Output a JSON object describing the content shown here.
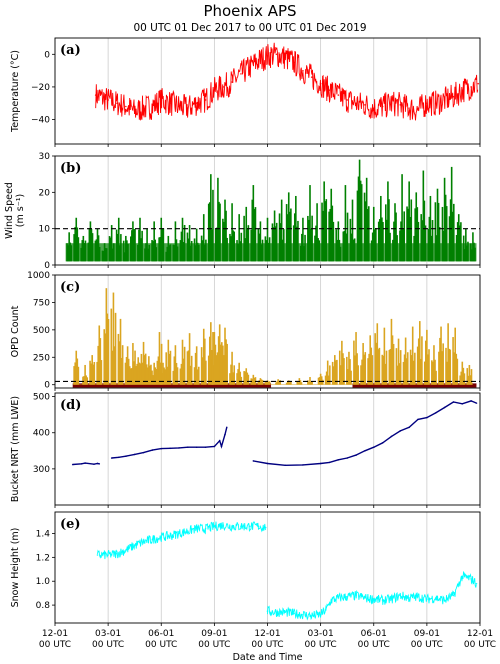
{
  "figure": {
    "title": "Phoenix APS",
    "subtitle": "00 UTC 01 Dec 2017  to  00 UTC 01 Dec 2019"
  },
  "chart_data": [
    {
      "type": "line",
      "panel_label": "(a)",
      "ylabel": "Temperature (°C)",
      "ylim": [
        -55,
        10
      ],
      "yticks": [
        0,
        -20,
        -40
      ],
      "ytick_labels": [
        "0",
        "−20",
        "−40"
      ],
      "color": "#ff0000",
      "grid": "vertical",
      "series": [
        {
          "x_months": [
            2.3,
            3.0,
            3.5,
            4.0,
            4.5,
            5.0,
            5.5,
            6.0,
            6.5,
            7.0,
            7.5,
            8.0,
            8.5,
            9.0,
            9.5,
            10.0,
            10.5,
            11.0,
            11.5,
            12.0,
            12.5,
            13.0,
            13.5,
            14.0,
            14.5,
            15.0,
            15.5,
            16.0,
            16.5,
            17.0,
            17.5,
            18.0,
            18.5,
            19.0,
            19.5,
            20.0,
            20.5,
            21.0,
            21.5,
            22.0,
            22.5,
            23.0,
            23.5,
            23.9
          ],
          "values": [
            -25,
            -28,
            -30,
            -32,
            -35,
            -33,
            -32,
            -28,
            -30,
            -32,
            -33,
            -30,
            -28,
            -22,
            -20,
            -17,
            -12,
            -8,
            -4,
            -1,
            0,
            -2,
            -5,
            -10,
            -14,
            -18,
            -22,
            -25,
            -28,
            -30,
            -31,
            -33,
            -32,
            -30,
            -31,
            -33,
            -34,
            -30,
            -30,
            -28,
            -26,
            -22,
            -20,
            -18
          ],
          "spread": 8
        }
      ]
    },
    {
      "type": "bar",
      "panel_label": "(b)",
      "ylabel": "Wind Speed",
      "ylabel_units": "(m s⁻¹)",
      "ylim": [
        0,
        30
      ],
      "yticks": [
        0,
        10,
        20,
        30
      ],
      "ytick_labels": [
        "0",
        "10",
        "20",
        "30"
      ],
      "color": "#008000",
      "grid": "vertical",
      "reference_line": 10,
      "series": [
        {
          "x_months": [
            0.8,
            1.2,
            1.6,
            2.0,
            2.4,
            2.8,
            3.2,
            3.6,
            4.0,
            4.4,
            4.8,
            5.2,
            5.6,
            6.0,
            6.4,
            6.8,
            7.2,
            7.6,
            8.0,
            8.4,
            8.8,
            9.2,
            9.6,
            10.0,
            10.4,
            10.8,
            11.2,
            11.6,
            12.0,
            12.4,
            12.8,
            13.2,
            13.6,
            14.0,
            14.4,
            14.8,
            15.2,
            15.6,
            16.0,
            16.4,
            16.8,
            17.2,
            17.6,
            18.0,
            18.4,
            18.8,
            19.2,
            19.6,
            20.0,
            20.4,
            20.8,
            21.2,
            21.6,
            22.0,
            22.4,
            22.8,
            23.2,
            23.6
          ],
          "values": [
            9,
            13,
            8,
            12,
            10,
            6,
            11,
            13,
            8,
            12,
            13,
            10,
            12,
            13,
            8,
            12,
            13,
            11,
            10,
            14,
            25,
            24,
            18,
            17,
            14,
            16,
            22,
            12,
            13,
            15,
            18,
            20,
            19,
            13,
            22,
            17,
            23,
            21,
            12,
            22,
            18,
            29,
            24,
            16,
            19,
            23,
            17,
            25,
            23,
            20,
            26,
            19,
            21,
            24,
            27,
            14,
            10,
            9
          ],
          "baseline": 1
        }
      ]
    },
    {
      "type": "bar",
      "panel_label": "(c)",
      "ylabel": "OPD Count",
      "ylim": [
        -30,
        1000
      ],
      "yticks": [
        0,
        250,
        500,
        750,
        1000
      ],
      "ytick_labels": [
        "0",
        "250",
        "500",
        "750",
        "1000"
      ],
      "color": "#daa520",
      "grid": "vertical",
      "reference_line": 30,
      "flag_color": "#7a0000",
      "flag_segments": [
        [
          1.0,
          12.2
        ],
        [
          16.8,
          23.8
        ]
      ],
      "series": [
        {
          "x_months": [
            1.2,
            1.7,
            2.1,
            2.5,
            2.9,
            3.3,
            3.7,
            4.1,
            4.4,
            4.7,
            5.0,
            5.3,
            5.6,
            5.9,
            6.1,
            6.4,
            6.8,
            7.2,
            7.6,
            8.0,
            8.4,
            8.8,
            9.0,
            9.3,
            9.6,
            10.0,
            10.4,
            10.8,
            11.2,
            11.6,
            12.0,
            12.6,
            13.2,
            13.8,
            14.4,
            15.0,
            15.4,
            15.8,
            16.2,
            16.6,
            17.0,
            17.4,
            17.8,
            18.2,
            18.6,
            19.0,
            19.4,
            19.8,
            20.2,
            20.6,
            21.0,
            21.4,
            21.8,
            22.2,
            22.6,
            23.0,
            23.4
          ],
          "values": [
            310,
            180,
            270,
            540,
            880,
            840,
            600,
            350,
            380,
            250,
            390,
            260,
            200,
            480,
            200,
            410,
            360,
            410,
            470,
            350,
            510,
            570,
            480,
            550,
            520,
            300,
            200,
            150,
            90,
            60,
            40,
            50,
            40,
            60,
            70,
            100,
            220,
            270,
            400,
            300,
            480,
            380,
            450,
            560,
            520,
            600,
            420,
            430,
            530,
            580,
            500,
            360,
            530,
            560,
            520,
            210,
            180
          ]
        }
      ]
    },
    {
      "type": "line",
      "panel_label": "(d)",
      "ylabel": "Bucket NRT (mm LWE)",
      "ylim": [
        200,
        510
      ],
      "yticks": [
        300,
        400,
        500
      ],
      "ytick_labels": [
        "300",
        "400",
        "500"
      ],
      "color": "#000080",
      "grid": "vertical",
      "series": [
        {
          "x_months": [
            1.0,
            1.5,
            1.7,
            2.2,
            2.4,
            2.5
          ],
          "values": [
            312,
            314,
            316,
            313,
            315,
            314
          ]
        },
        {
          "x_months": [
            3.2,
            3.6,
            4.0,
            4.5,
            5.0,
            5.5,
            6.0,
            6.5,
            7.0,
            7.5,
            8.0,
            8.5,
            9.0,
            9.3,
            9.4,
            9.6,
            9.7
          ],
          "values": [
            330,
            332,
            335,
            340,
            345,
            352,
            356,
            357,
            358,
            360,
            360,
            360,
            362,
            378,
            362,
            395,
            415
          ]
        },
        {
          "x_months": [
            11.2,
            12.0,
            13.0,
            14.0,
            15.0,
            15.5,
            16.0,
            16.5,
            17.0,
            17.5,
            18.0,
            18.5,
            19.0,
            19.5,
            20.0,
            20.5,
            21.0,
            21.5,
            22.0,
            22.5,
            23.0,
            23.5,
            23.8
          ],
          "values": [
            322,
            315,
            310,
            311,
            315,
            318,
            325,
            330,
            338,
            350,
            360,
            372,
            390,
            405,
            415,
            437,
            442,
            455,
            470,
            485,
            480,
            488,
            482
          ]
        }
      ]
    },
    {
      "type": "line",
      "panel_label": "(e)",
      "ylabel": "Snow Height (m)",
      "ylim": [
        0.65,
        1.58
      ],
      "yticks": [
        0.8,
        1.0,
        1.2,
        1.4
      ],
      "ytick_labels": [
        "0.8",
        "1.0",
        "1.2",
        "1.4"
      ],
      "color": "#00ffff",
      "grid": "vertical",
      "xticks": [
        0,
        3,
        6,
        9,
        12,
        15,
        18,
        21,
        24
      ],
      "xtick_labels": [
        "12-01\n00 UTC",
        "03-01\n00 UTC",
        "06-01\n00 UTC",
        "09-01\n00 UTC",
        "12-01\n00 UTC",
        "03-01\n00 UTC",
        "06-01\n00 UTC",
        "09-01\n00 UTC",
        "12-01\n00 UTC"
      ],
      "xlabel": "Date and Time",
      "series": [
        {
          "x_months": [
            2.4,
            3.0,
            3.5,
            4.0,
            4.5,
            5.0,
            5.5,
            6.0,
            6.5,
            7.0,
            7.5,
            8.0,
            8.5,
            9.0,
            9.5,
            10.0,
            10.5,
            11.0,
            11.5,
            11.9
          ],
          "values": [
            1.22,
            1.22,
            1.23,
            1.26,
            1.3,
            1.33,
            1.35,
            1.37,
            1.38,
            1.4,
            1.42,
            1.44,
            1.44,
            1.46,
            1.47,
            1.46,
            1.46,
            1.46,
            1.46,
            1.45
          ],
          "spread": 0.04
        },
        {
          "x_months": [
            12.0,
            12.5,
            13.0,
            13.5,
            14.0,
            14.5,
            15.0,
            15.3,
            15.6,
            16.0,
            16.5,
            17.0,
            17.5,
            18.0,
            18.5,
            19.0,
            19.5,
            20.0,
            20.5,
            21.0,
            21.5,
            22.0,
            22.5,
            23.0,
            23.5,
            23.8
          ],
          "values": [
            0.75,
            0.74,
            0.74,
            0.73,
            0.72,
            0.71,
            0.72,
            0.76,
            0.84,
            0.86,
            0.87,
            0.88,
            0.86,
            0.85,
            0.84,
            0.85,
            0.88,
            0.86,
            0.87,
            0.85,
            0.86,
            0.84,
            0.88,
            1.04,
            1.02,
            0.98
          ],
          "spread": 0.04
        }
      ]
    }
  ]
}
